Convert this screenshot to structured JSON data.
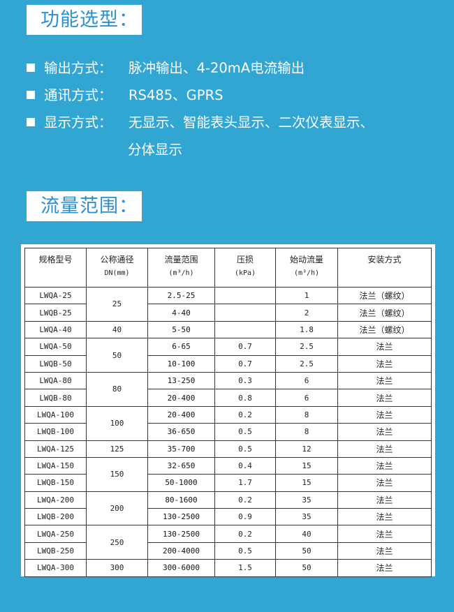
{
  "section1": {
    "title": "功能选型："
  },
  "features": [
    {
      "label": "输出方式：",
      "value": "脉冲输出、4-20mA电流输出",
      "cont": ""
    },
    {
      "label": "通讯方式：",
      "value": "RS485、GPRS",
      "cont": ""
    },
    {
      "label": "显示方式：",
      "value": "无显示、智能表头显示、二次仪表显示、",
      "cont": "分体显示"
    }
  ],
  "section2": {
    "title": "流量范围："
  },
  "table": {
    "headers": [
      {
        "title": "规格型号",
        "unit": ""
      },
      {
        "title": "公称通径",
        "unit": "DN(mm)"
      },
      {
        "title": "流量范围",
        "unit": "(m³/h)"
      },
      {
        "title": "压损",
        "unit": "(kPa)"
      },
      {
        "title": "始动流量",
        "unit": "(m³/h)"
      },
      {
        "title": "安装方式",
        "unit": ""
      }
    ],
    "rows": [
      [
        "LWQA-25",
        "25",
        "2.5-25",
        "",
        "1",
        "法兰（螺纹）"
      ],
      [
        "LWQB-25",
        "25",
        "4-40",
        "",
        "2",
        "法兰（螺纹）"
      ],
      [
        "LWQA-40",
        "40",
        "5-50",
        "",
        "1.8",
        "法兰（螺纹）"
      ],
      [
        "LWQA-50",
        "50",
        "6-65",
        "0.7",
        "2.5",
        "法兰"
      ],
      [
        "LWQB-50",
        "50",
        "10-100",
        "0.7",
        "2.5",
        "法兰"
      ],
      [
        "LWQA-80",
        "80",
        "13-250",
        "0.3",
        "6",
        "法兰"
      ],
      [
        "LWQB-80",
        "80",
        "20-400",
        "0.8",
        "6",
        "法兰"
      ],
      [
        "LWQA-100",
        "100",
        "20-400",
        "0.2",
        "8",
        "法兰"
      ],
      [
        "LWQB-100",
        "100",
        "36-650",
        "0.5",
        "8",
        "法兰"
      ],
      [
        "LWQA-125",
        "125",
        "35-700",
        "0.5",
        "12",
        "法兰"
      ],
      [
        "LWQA-150",
        "150",
        "32-650",
        "0.4",
        "15",
        "法兰"
      ],
      [
        "LWQB-150",
        "150",
        "50-1000",
        "1.7",
        "15",
        "法兰"
      ],
      [
        "LWQA-200",
        "200",
        "80-1600",
        "0.2",
        "35",
        "法兰"
      ],
      [
        "LWQB-200",
        "200",
        "130-2500",
        "0.9",
        "35",
        "法兰"
      ],
      [
        "LWQA-250",
        "250",
        "130-2500",
        "0.2",
        "40",
        "法兰"
      ],
      [
        "LWQB-250",
        "250",
        "200-4000",
        "0.5",
        "50",
        "法兰"
      ],
      [
        "LWQA-300",
        "300",
        "300-6000",
        "1.5",
        "50",
        "法兰"
      ]
    ]
  },
  "colors": {
    "background": "#31a6d3",
    "title_text": "#2b8fcd"
  }
}
